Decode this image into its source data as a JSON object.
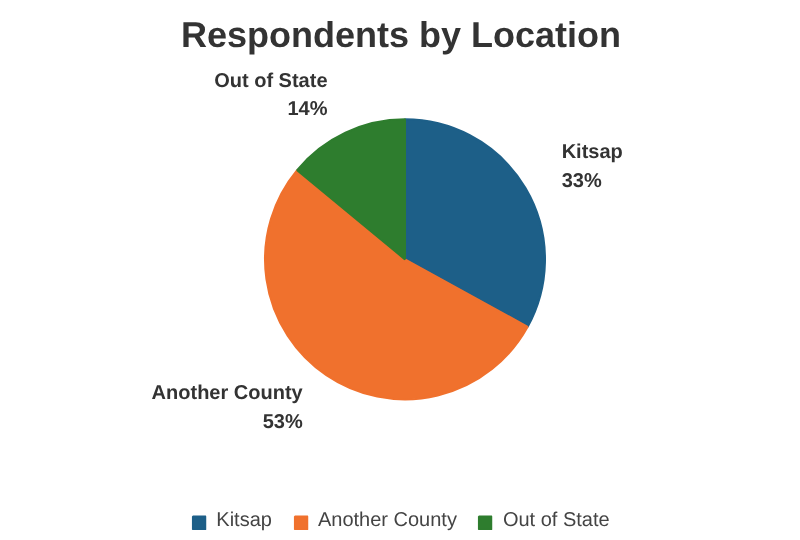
{
  "chart_data": {
    "type": "pie",
    "title": "Respondents by Location",
    "categories": [
      "Kitsap",
      "Another County",
      "Out of State"
    ],
    "values": [
      33,
      53,
      14
    ],
    "colors": [
      "#1d5f88",
      "#f0712d",
      "#2e7d2e"
    ],
    "value_labels": [
      "33%",
      "53%",
      "14%"
    ],
    "legend": "bottom"
  }
}
